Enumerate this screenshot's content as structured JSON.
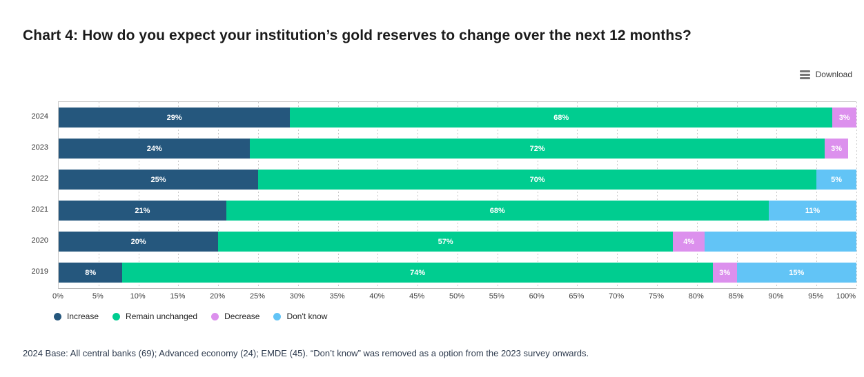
{
  "header": {
    "title": "Chart 4: How do you expect your institution’s gold reserves to change over the next 12 months?"
  },
  "toolbar": {
    "download_label": "Download"
  },
  "footnote": {
    "text": "2024 Base: All central banks (69); Advanced economy (24); EMDE (45). “Don’t know” was removed as a option from the 2023 survey onwards."
  },
  "chart_data": {
    "type": "bar",
    "subtype": "horizontal-stacked",
    "title": "Chart 4: How do you expect your institution’s gold reserves to change over the next 12 months?",
    "xlabel": "",
    "ylabel": "",
    "xlim": [
      0,
      100
    ],
    "x_tick_step": 5,
    "x_tick_labels": [
      "0%",
      "5%",
      "10%",
      "15%",
      "20%",
      "25%",
      "30%",
      "35%",
      "40%",
      "45%",
      "50%",
      "55%",
      "60%",
      "65%",
      "70%",
      "75%",
      "80%",
      "85%",
      "90%",
      "95%",
      "100%"
    ],
    "grid": "dotted-vertical",
    "legend_position": "bottom",
    "categories": [
      "2024",
      "2023",
      "2022",
      "2021",
      "2020",
      "2019"
    ],
    "series_names": [
      "Increase",
      "Remain unchanged",
      "Decrease",
      "Don't know"
    ],
    "series_colors": {
      "Increase": "#25577d",
      "Remain unchanged": "#00cd90",
      "Decrease": "#dc90ed",
      "Don't know": "#62c4f6"
    },
    "legend": [
      {
        "label": "Increase",
        "color": "#25577d"
      },
      {
        "label": "Remain unchanged",
        "color": "#00cd90"
      },
      {
        "label": "Decrease",
        "color": "#dc90ed"
      },
      {
        "label": "Don't know",
        "color": "#62c4f6"
      }
    ],
    "rows": [
      {
        "year": "2024",
        "segments": [
          {
            "series": "Increase",
            "value": 29,
            "label": "29%"
          },
          {
            "series": "Remain unchanged",
            "value": 68,
            "label": "68%"
          },
          {
            "series": "Decrease",
            "value": 3,
            "label": "3%"
          }
        ]
      },
      {
        "year": "2023",
        "segments": [
          {
            "series": "Increase",
            "value": 24,
            "label": "24%"
          },
          {
            "series": "Remain unchanged",
            "value": 72,
            "label": "72%"
          },
          {
            "series": "Decrease",
            "value": 3,
            "label": "3%"
          }
        ]
      },
      {
        "year": "2022",
        "segments": [
          {
            "series": "Increase",
            "value": 25,
            "label": "25%"
          },
          {
            "series": "Remain unchanged",
            "value": 70,
            "label": "70%"
          },
          {
            "series": "Don't know",
            "value": 5,
            "label": "5%"
          }
        ]
      },
      {
        "year": "2021",
        "segments": [
          {
            "series": "Increase",
            "value": 21,
            "label": "21%"
          },
          {
            "series": "Remain unchanged",
            "value": 68,
            "label": "68%"
          },
          {
            "series": "Don't know",
            "value": 11,
            "label": "11%"
          }
        ]
      },
      {
        "year": "2020",
        "segments": [
          {
            "series": "Increase",
            "value": 20,
            "label": "20%"
          },
          {
            "series": "Remain unchanged",
            "value": 57,
            "label": "57%"
          },
          {
            "series": "Decrease",
            "value": 4,
            "label": "4%"
          },
          {
            "series": "Don't know",
            "value": 19,
            "label": ""
          }
        ]
      },
      {
        "year": "2019",
        "segments": [
          {
            "series": "Increase",
            "value": 8,
            "label": "8%"
          },
          {
            "series": "Remain unchanged",
            "value": 74,
            "label": "74%"
          },
          {
            "series": "Decrease",
            "value": 3,
            "label": "3%"
          },
          {
            "series": "Don't know",
            "value": 15,
            "label": "15%"
          }
        ]
      }
    ]
  }
}
